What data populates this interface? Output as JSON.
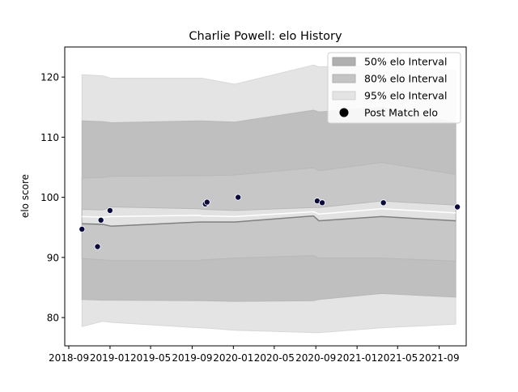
{
  "chart_data": {
    "type": "line",
    "title": "Charlie Powell: elo History",
    "xlabel": "",
    "ylabel": "elo score",
    "xlim": [
      "2018-08-20",
      "2021-11-20"
    ],
    "ylim": [
      75.3,
      125.0
    ],
    "x_ticks": [
      "2018-09",
      "2019-01",
      "2019-05",
      "2019-09",
      "2020-01",
      "2020-05",
      "2020-09",
      "2021-01",
      "2021-05",
      "2021-09"
    ],
    "y_ticks": [
      80,
      90,
      100,
      110,
      120
    ],
    "grid": false,
    "legend_position": "upper right",
    "band_dates": [
      "2018-10-10",
      "2018-12-10",
      "2019-01-05",
      "2019-09-20",
      "2019-10-01",
      "2020-01-05",
      "2020-08-25",
      "2020-09-10",
      "2021-03-15",
      "2021-10-20"
    ],
    "mean": [
      96.8,
      96.7,
      96.8,
      97.0,
      96.9,
      96.8,
      97.6,
      97.2,
      98.1,
      97.4
    ],
    "bands": [
      {
        "name": "50% elo Interval",
        "color": "#b0b0b0",
        "lower": [
          95.6,
          95.5,
          95.2,
          95.9,
          95.9,
          95.9,
          96.9,
          96.1,
          96.8,
          96.1
        ],
        "upper": [
          98.0,
          97.9,
          98.4,
          98.1,
          98.0,
          97.8,
          98.3,
          98.3,
          99.4,
          98.7
        ]
      },
      {
        "name": "80% elo Interval",
        "color": "#c4c4c4",
        "lower": [
          89.8,
          89.6,
          89.5,
          89.5,
          89.6,
          89.9,
          90.3,
          89.9,
          89.9,
          89.4
        ],
        "upper": [
          103.2,
          103.3,
          103.5,
          103.6,
          103.6,
          103.7,
          104.9,
          104.4,
          105.8,
          103.8
        ]
      },
      {
        "name": "95% elo Interval",
        "color": "#e4e4e4",
        "lower": [
          83.0,
          82.9,
          82.9,
          82.8,
          82.8,
          82.7,
          82.8,
          83.0,
          84.0,
          83.4
        ],
        "upper": [
          112.7,
          112.6,
          112.4,
          112.7,
          112.7,
          112.5,
          114.5,
          114.2,
          115.0,
          112.4
        ]
      }
    ],
    "outer_band": {
      "color": "#e4e4e4",
      "lower": [
        78.5,
        79.4,
        79.2,
        78.3,
        78.3,
        77.9,
        77.5,
        77.5,
        78.3,
        78.9
      ],
      "upper": [
        120.4,
        120.2,
        119.8,
        119.8,
        119.8,
        118.8,
        122.0,
        121.7,
        121.9,
        121.0
      ]
    },
    "series": [
      {
        "name": "Post Match elo",
        "marker_color": "#0b0b3b",
        "points": [
          {
            "x": "2018-10-10",
            "y": 94.7
          },
          {
            "x": "2018-11-25",
            "y": 91.8
          },
          {
            "x": "2018-12-05",
            "y": 96.2
          },
          {
            "x": "2019-01-01",
            "y": 97.8
          },
          {
            "x": "2019-10-10",
            "y": 98.9
          },
          {
            "x": "2019-10-15",
            "y": 99.2
          },
          {
            "x": "2020-01-15",
            "y": 100.0
          },
          {
            "x": "2020-09-05",
            "y": 99.4
          },
          {
            "x": "2020-09-20",
            "y": 99.1
          },
          {
            "x": "2021-03-20",
            "y": 99.1
          },
          {
            "x": "2021-10-25",
            "y": 98.4
          }
        ]
      }
    ],
    "legend": [
      "50% elo Interval",
      "80% elo Interval",
      "95% elo Interval",
      "Post Match elo"
    ]
  }
}
